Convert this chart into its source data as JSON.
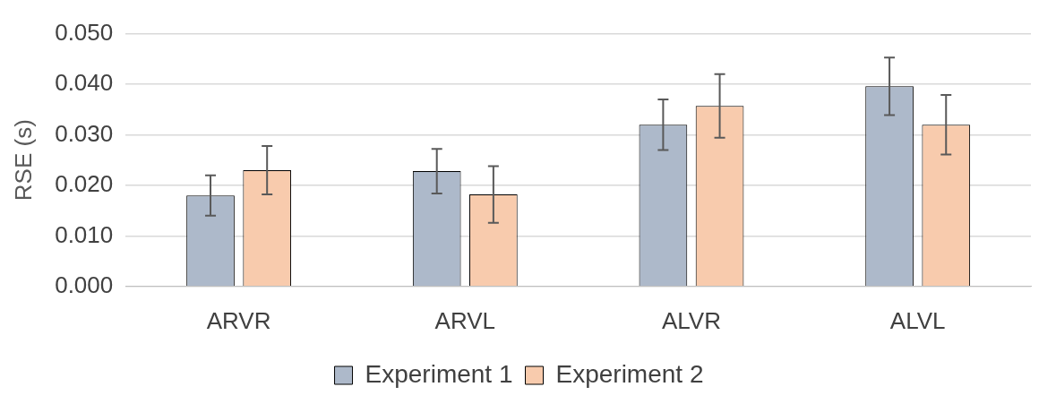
{
  "chart_data": {
    "type": "bar",
    "ylabel": "RSE (s)",
    "categories": [
      "ARVR",
      "ARVL",
      "ALVR",
      "ALVL"
    ],
    "series": [
      {
        "name": "Experiment 1",
        "color": "#adb9ca",
        "values": [
          0.018,
          0.0228,
          0.032,
          0.0396
        ],
        "errors": [
          0.004,
          0.0044,
          0.005,
          0.0057
        ]
      },
      {
        "name": "Experiment 2",
        "color": "#f8cbad",
        "values": [
          0.023,
          0.0182,
          0.0357,
          0.032
        ],
        "errors": [
          0.0048,
          0.0056,
          0.0063,
          0.0059
        ]
      }
    ],
    "ylim": [
      0,
      0.05
    ],
    "yticks": [
      {
        "value": 0,
        "label": "0.000"
      },
      {
        "value": 0.01,
        "label": "0.010"
      },
      {
        "value": 0.02,
        "label": "0.020"
      },
      {
        "value": 0.03,
        "label": "0.030"
      },
      {
        "value": 0.04,
        "label": "0.040"
      },
      {
        "value": 0.05,
        "label": "0.050"
      }
    ],
    "grid": "y",
    "legend": "bottom"
  }
}
